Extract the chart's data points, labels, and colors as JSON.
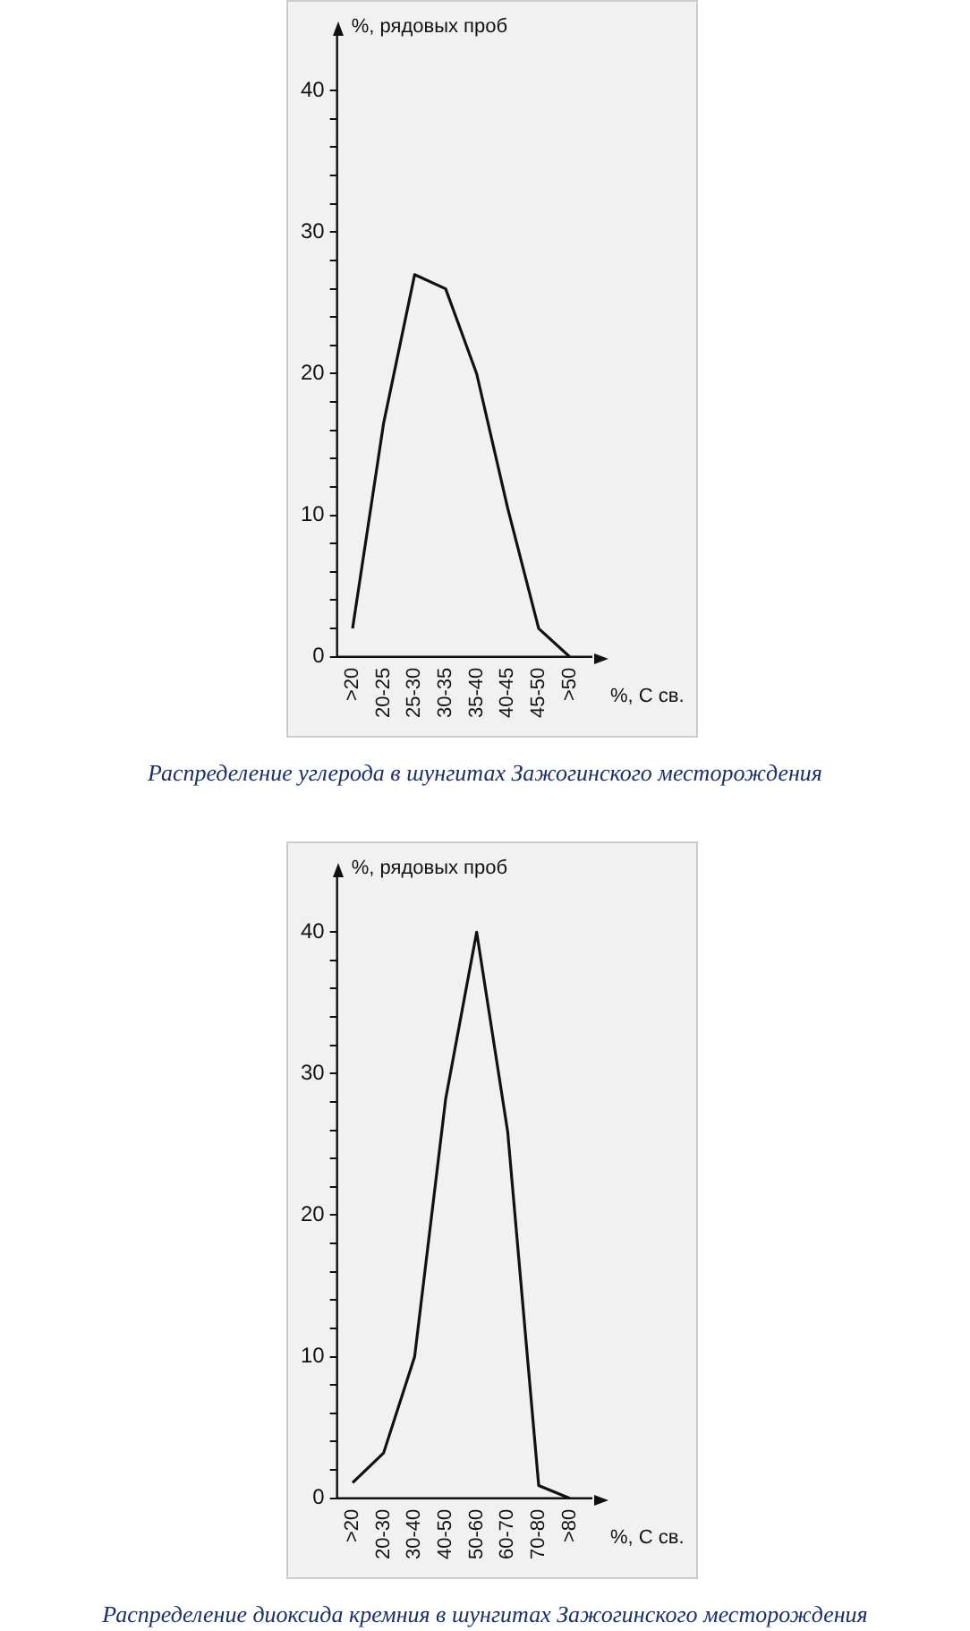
{
  "chart_data": [
    {
      "type": "line",
      "ylabel": "%, рядовых проб",
      "xlabel": "%, С св.",
      "categories": [
        ">20",
        "20-25",
        "25-30",
        "30-35",
        "35-40",
        "40-45",
        "45-50",
        ">50"
      ],
      "series": [
        {
          "color": "#111111",
          "values": [
            2,
            16.5,
            27,
            26,
            20,
            10.5,
            2,
            0
          ]
        }
      ],
      "ylim": [
        0,
        44
      ],
      "yticks": [
        0,
        {
          "value": 2,
          "label": null
        },
        {
          "value": 4,
          "label": null
        },
        {
          "value": 6,
          "label": null
        },
        {
          "value": 8,
          "label": null
        },
        10,
        {
          "value": 12,
          "label": null
        },
        {
          "value": 14,
          "label": null
        },
        {
          "value": 16,
          "label": null
        },
        {
          "value": 18,
          "label": null
        },
        20,
        {
          "value": 22,
          "label": null
        },
        {
          "value": 24,
          "label": null
        },
        {
          "value": 26,
          "label": null
        },
        {
          "value": 28,
          "label": null
        },
        30,
        {
          "value": 32,
          "label": null
        },
        {
          "value": 34,
          "label": null
        },
        {
          "value": 36,
          "label": null
        },
        {
          "value": 38,
          "label": null
        },
        40
      ],
      "grid": false,
      "legend": false,
      "marker": "none",
      "line_style": "solid",
      "annotations": [
        "Распределение углерода в шунгитах Зажогинского месторождения"
      ]
    },
    {
      "type": "line",
      "ylabel": "%, рядовых проб",
      "xlabel": "%, С св.",
      "categories": [
        ">20",
        "20-30",
        "30-40",
        "40-50",
        "50-60",
        "60-70",
        "70-80",
        ">80"
      ],
      "series": [
        {
          "color": "#111111",
          "values": [
            1.1,
            3.2,
            10,
            28.2,
            40,
            25.9,
            0.9,
            0
          ]
        }
      ],
      "ylim": [
        0,
        44
      ],
      "yticks": [
        0,
        {
          "value": 2,
          "label": null
        },
        {
          "value": 4,
          "label": null
        },
        {
          "value": 6,
          "label": null
        },
        {
          "value": 8,
          "label": null
        },
        10,
        {
          "value": 12,
          "label": null
        },
        {
          "value": 14,
          "label": null
        },
        {
          "value": 16,
          "label": null
        },
        {
          "value": 18,
          "label": null
        },
        20,
        {
          "value": 22,
          "label": null
        },
        {
          "value": 24,
          "label": null
        },
        {
          "value": 26,
          "label": null
        },
        {
          "value": 28,
          "label": null
        },
        30,
        {
          "value": 32,
          "label": null
        },
        {
          "value": 34,
          "label": null
        },
        {
          "value": 36,
          "label": null
        },
        {
          "value": 38,
          "label": null
        },
        40
      ],
      "grid": false,
      "legend": false,
      "marker": "none",
      "line_style": "solid",
      "annotations": [
        "Распределение диоксида кремния в шунгитах Зажогинского месторождения"
      ]
    }
  ]
}
